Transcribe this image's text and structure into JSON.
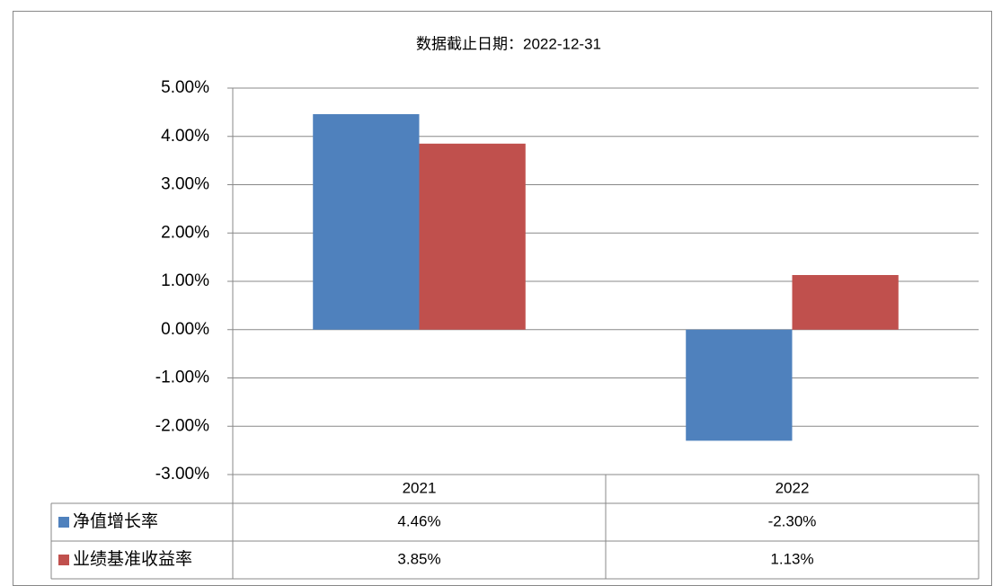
{
  "chart_data": {
    "type": "bar",
    "title": "数据截止日期：2022-12-31",
    "categories": [
      "2021",
      "2022"
    ],
    "series": [
      {
        "name": "净值增长率",
        "color": "#4f81bd",
        "values": [
          4.46,
          -2.3
        ],
        "value_labels": [
          "4.46%",
          "-2.30%"
        ]
      },
      {
        "name": "业绩基准收益率",
        "color": "#c0504d",
        "values": [
          3.85,
          1.13
        ],
        "value_labels": [
          "3.85%",
          "1.13%"
        ]
      }
    ],
    "ylim": [
      -3,
      5
    ],
    "yticks": [
      {
        "value": -3,
        "label": "-3.00%"
      },
      {
        "value": -2,
        "label": "-2.00%"
      },
      {
        "value": -1,
        "label": "-1.00%"
      },
      {
        "value": 0,
        "label": "0.00%"
      },
      {
        "value": 1,
        "label": "1.00%"
      },
      {
        "value": 2,
        "label": "2.00%"
      },
      {
        "value": 3,
        "label": "3.00%"
      },
      {
        "value": 4,
        "label": "4.00%"
      },
      {
        "value": 5,
        "label": "5.00%"
      }
    ],
    "grid": true
  }
}
